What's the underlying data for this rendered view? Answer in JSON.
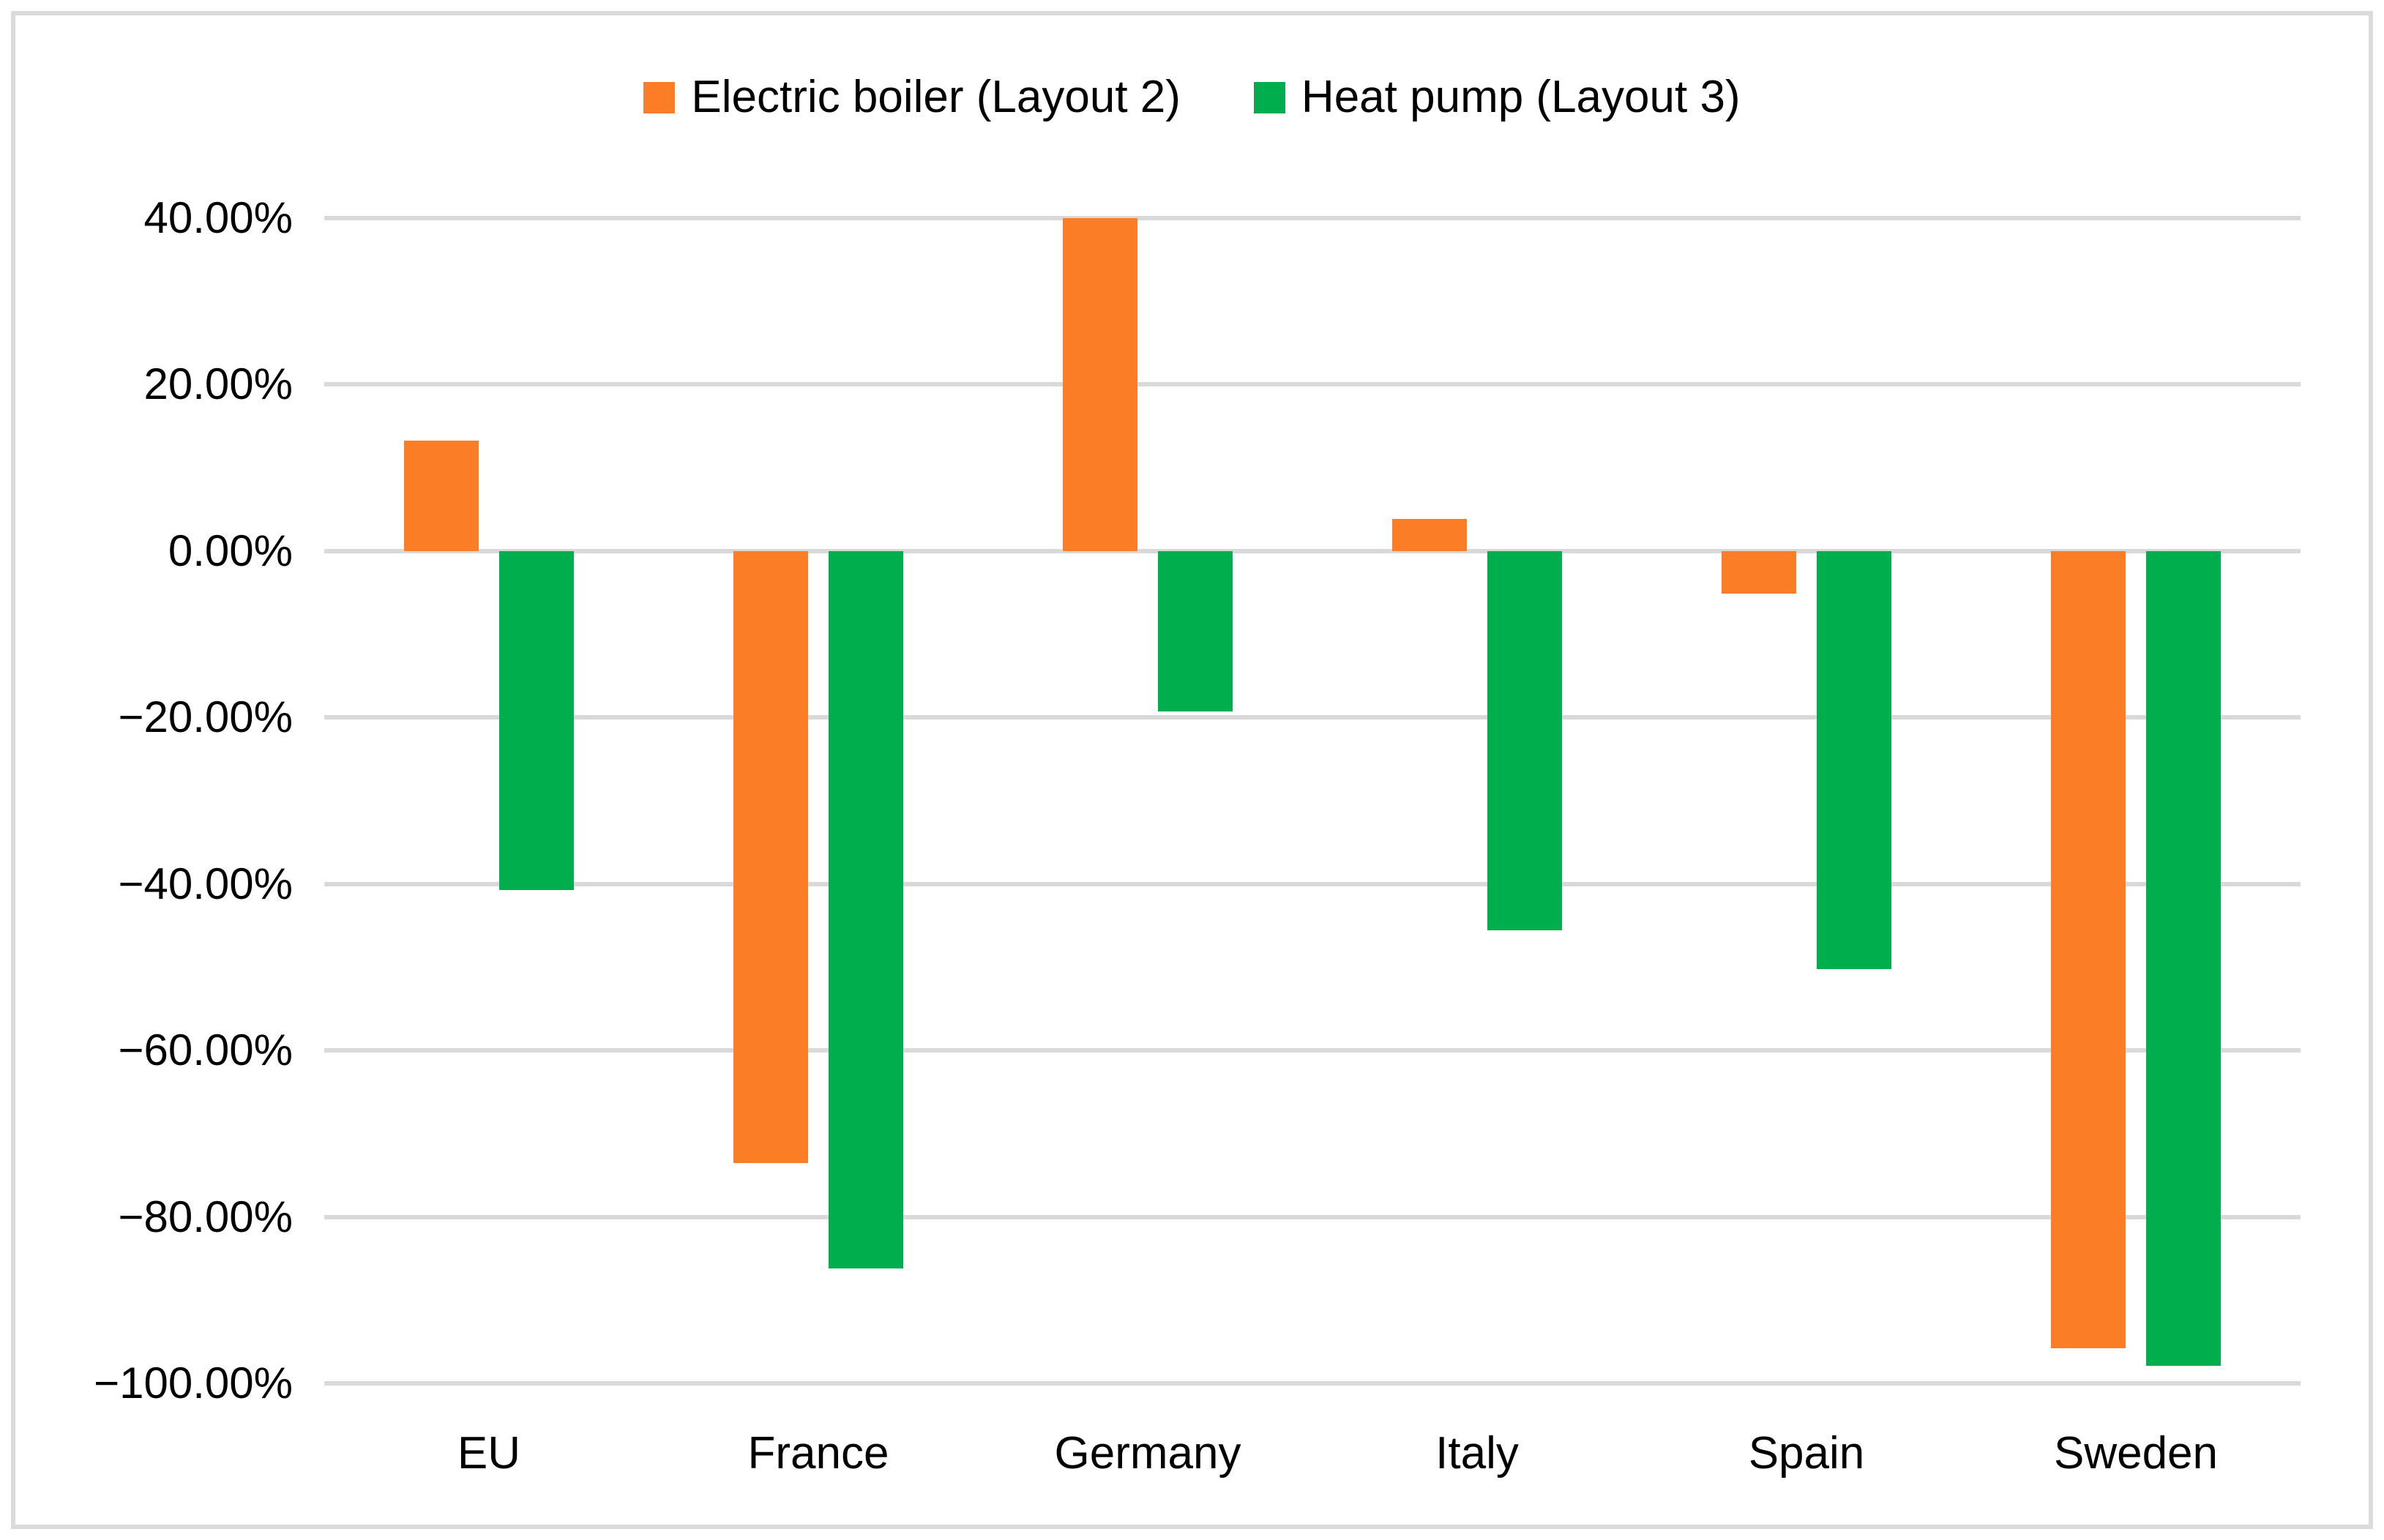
{
  "figure": {
    "background_color": "#FFFFFF",
    "border_color": "#DBDBDB"
  },
  "chart_data": {
    "type": "bar",
    "title": "",
    "xlabel": "",
    "ylabel": "",
    "categories": [
      "EU",
      "France",
      "Germany",
      "Italy",
      "Spain",
      "Sweden"
    ],
    "series": [
      {
        "name": "Electric boiler (Layout 2)",
        "color": "#FB7D25",
        "values": [
          13.3,
          -73.5,
          40.0,
          3.9,
          -5.1,
          -95.8
        ]
      },
      {
        "name": "Heat pump (Layout 3)",
        "color": "#00AE4D",
        "values": [
          -40.7,
          -86.2,
          -19.3,
          -45.6,
          -50.2,
          -97.9
        ]
      }
    ],
    "ylim": [
      -100,
      40
    ],
    "ytick_step": 20,
    "yticks": [
      {
        "value": 40,
        "label": "40.00%"
      },
      {
        "value": 20,
        "label": "20.00%"
      },
      {
        "value": 0,
        "label": "0.00%"
      },
      {
        "value": -20,
        "label": "−20.00%"
      },
      {
        "value": -40,
        "label": "−40.00%"
      },
      {
        "value": -60,
        "label": "−60.00%"
      },
      {
        "value": -80,
        "label": "−80.00%"
      },
      {
        "value": -100,
        "label": "−100.00%"
      }
    ],
    "grid": "horizontal",
    "gridline_color": "#D9D9D9",
    "legend_position": "top-center",
    "text_color": "#000000"
  }
}
